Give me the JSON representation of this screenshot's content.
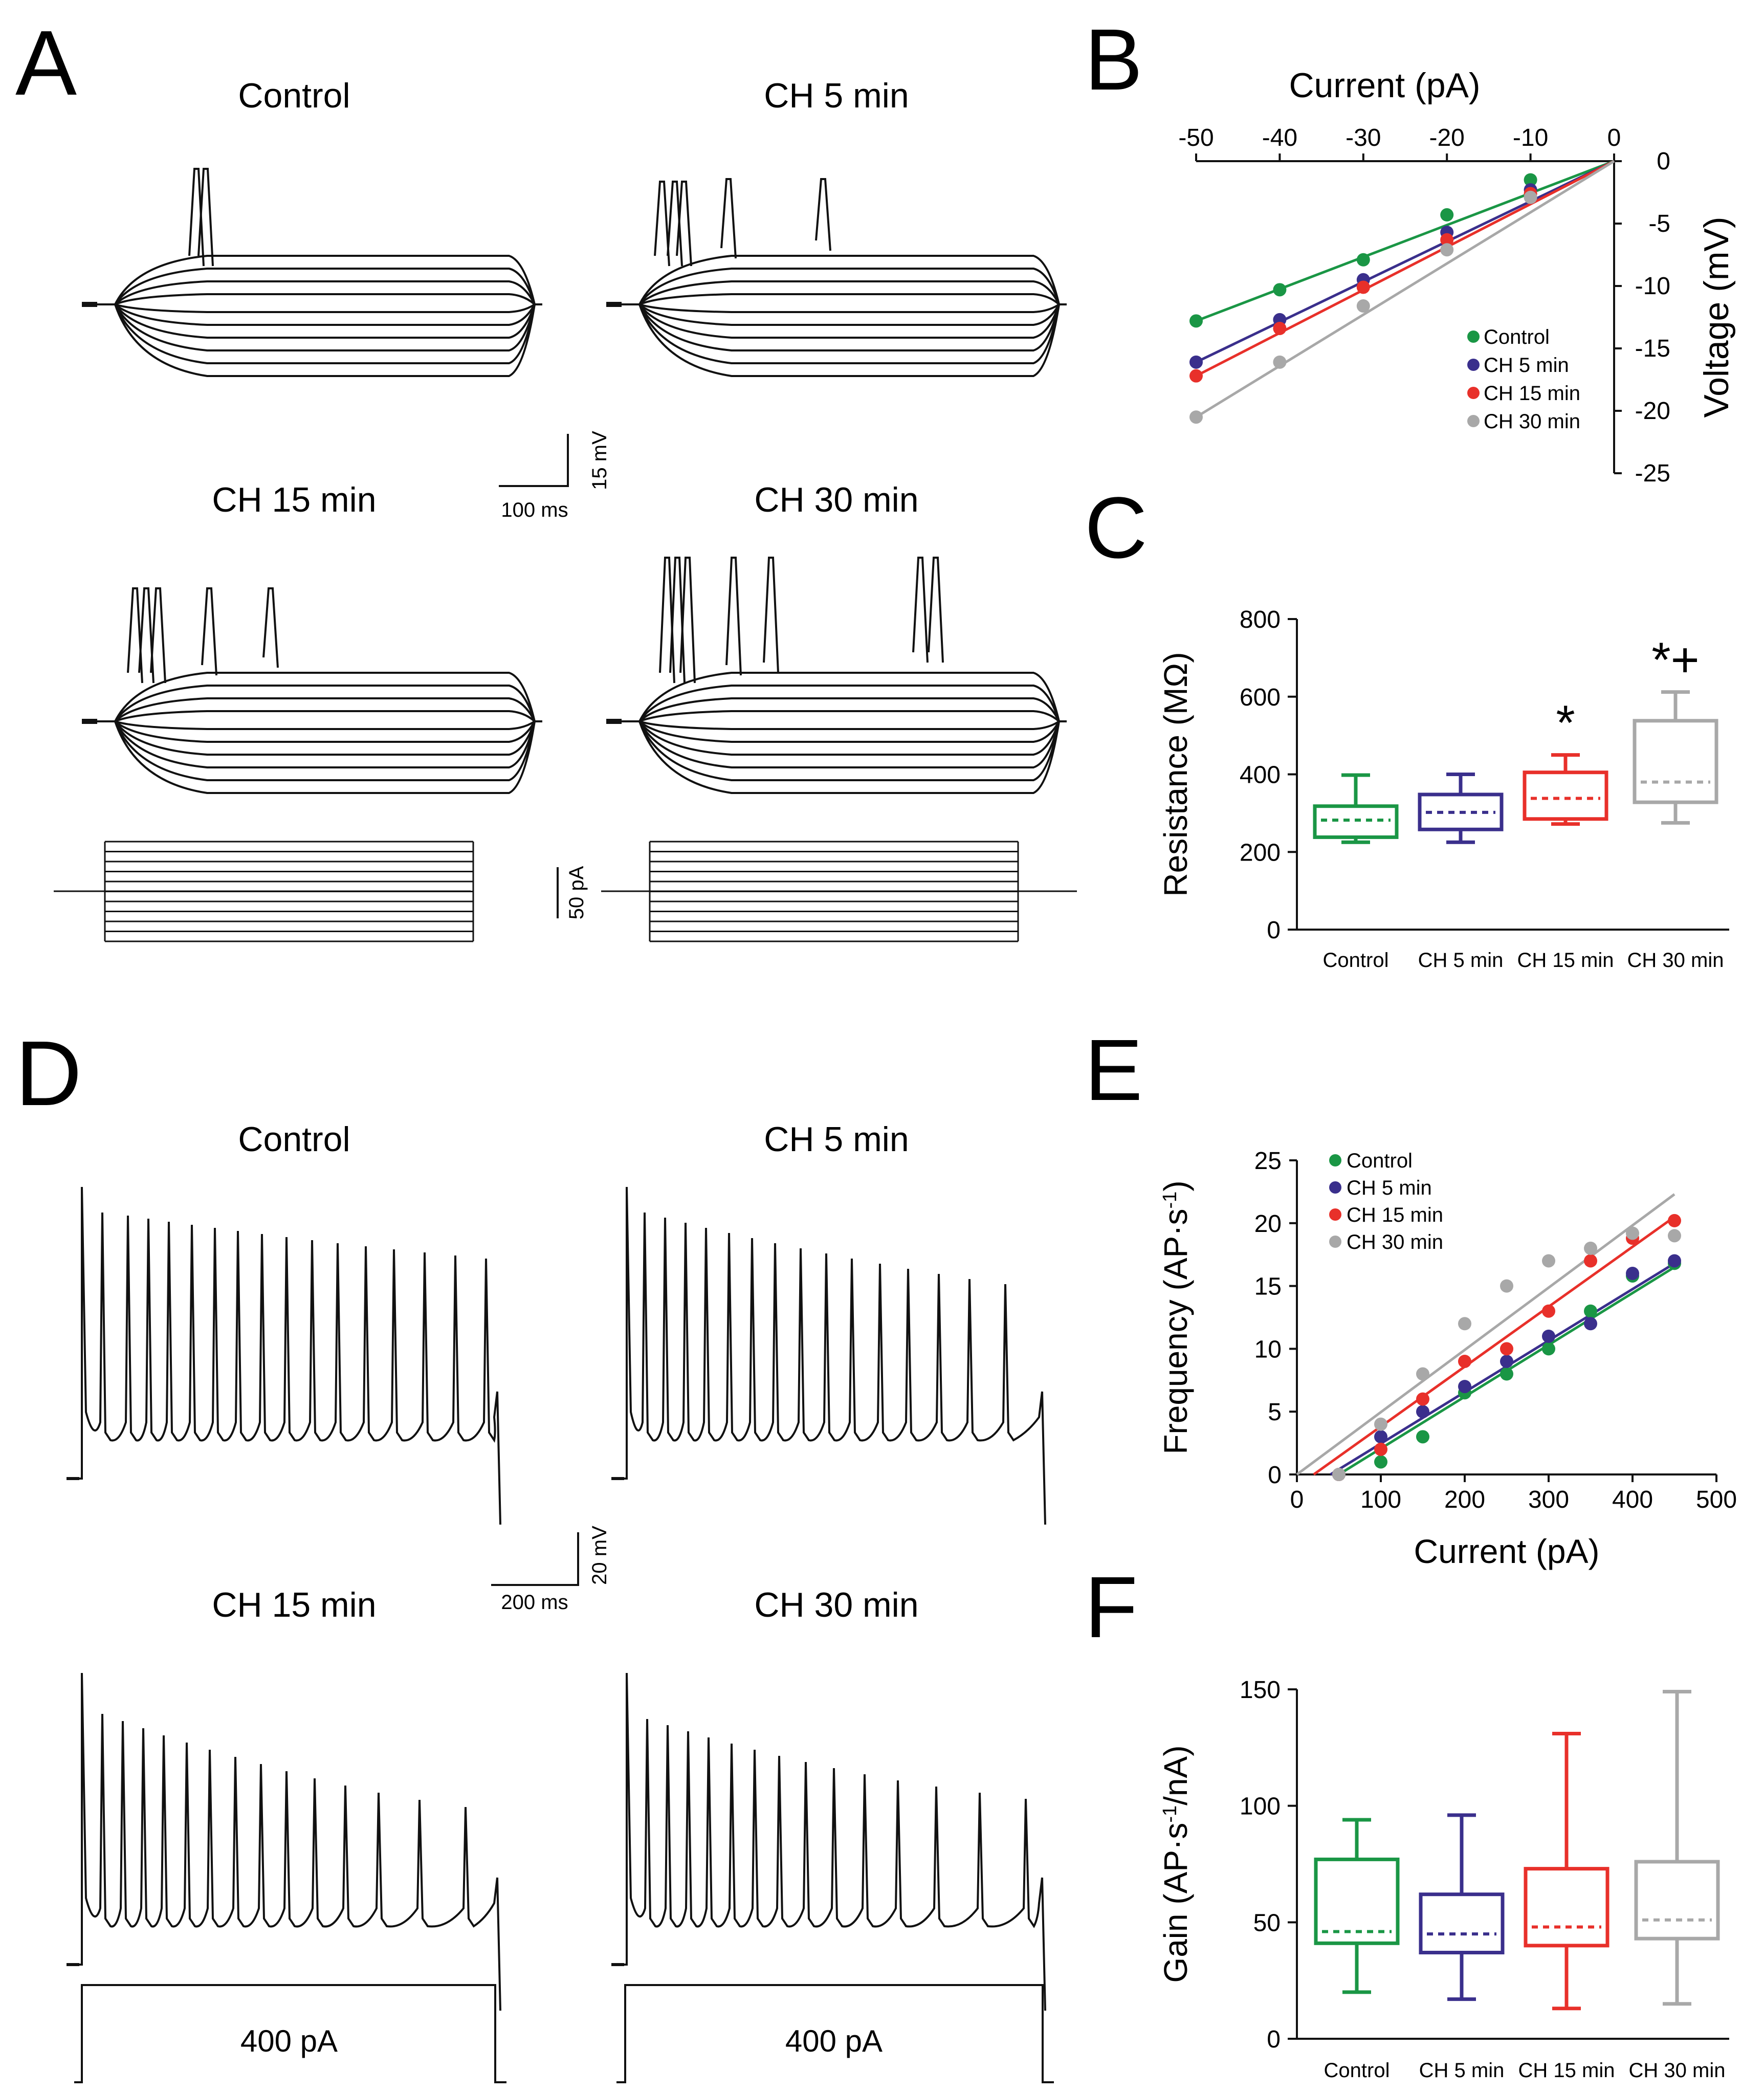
{
  "colors": {
    "control": "#1a9645",
    "ch5": "#3a2f8c",
    "ch15": "#e8302a",
    "ch30": "#a8a8a8",
    "trace": "#111111"
  },
  "panel_letters": [
    "A",
    "B",
    "C",
    "D",
    "E",
    "F"
  ],
  "conditions": [
    "Control",
    "CH 5 min",
    "CH 15 min",
    "CH 30 min"
  ],
  "scalebars": {
    "a_voltage": "15 mV",
    "a_time": "100 ms",
    "a_current": "50 pA",
    "d_voltage": "20 mV",
    "d_time": "200 ms"
  },
  "step_label": "400 pA",
  "chart_data": [
    {
      "panel": "B",
      "type": "scatter",
      "xlabel": "Current (pA)",
      "ylabel": "Voltage (mV)",
      "xlim": [
        -50,
        0
      ],
      "ylim": [
        -25,
        0
      ],
      "xticks": [
        "-50",
        "-40",
        "-30",
        "-20",
        "-10",
        "0"
      ],
      "yticks": [
        "0",
        "-5",
        "-10",
        "-15",
        "-20",
        "-25"
      ],
      "x": [
        -50,
        -40,
        -30,
        -20,
        -10
      ],
      "series": [
        {
          "name": "Control",
          "values": [
            -12.8,
            -10.3,
            -7.9,
            -4.3,
            -1.5
          ]
        },
        {
          "name": "CH 5 min",
          "values": [
            -16.1,
            -12.7,
            -9.5,
            -5.7,
            -2.3
          ]
        },
        {
          "name": "CH 15 min",
          "values": [
            -17.2,
            -13.4,
            -10.1,
            -6.3,
            -2.6
          ]
        },
        {
          "name": "CH 30 min",
          "values": [
            -20.5,
            -16.1,
            -11.6,
            -7.1,
            -2.9
          ]
        }
      ],
      "legend": [
        "Control",
        "CH 5 min",
        "CH 15 min",
        "CH 30 min"
      ]
    },
    {
      "panel": "C",
      "type": "box",
      "ylabel": "Resistance (MΩ)",
      "ylim": [
        0,
        800
      ],
      "yticks": [
        "0",
        "200",
        "400",
        "600",
        "800"
      ],
      "categories": [
        "Control",
        "CH 5 min",
        "CH 15 min",
        "CH 30 min"
      ],
      "boxes": [
        {
          "min": 225,
          "q1": 238,
          "median": 282,
          "q3": 318,
          "max": 398
        },
        {
          "min": 225,
          "q1": 258,
          "median": 302,
          "q3": 348,
          "max": 400
        },
        {
          "min": 272,
          "q1": 285,
          "median": 338,
          "q3": 405,
          "max": 450
        },
        {
          "min": 275,
          "q1": 328,
          "median": 380,
          "q3": 538,
          "max": 612
        }
      ],
      "annotations": [
        "",
        "",
        "*",
        "*+"
      ]
    },
    {
      "panel": "E",
      "type": "scatter",
      "xlabel": "Current (pA)",
      "ylabel": "Frequency (AP·s-1)",
      "xlim": [
        0,
        500
      ],
      "ylim": [
        0,
        25
      ],
      "xticks": [
        "0",
        "100",
        "200",
        "300",
        "400",
        "500"
      ],
      "yticks": [
        "0",
        "5",
        "10",
        "15",
        "20",
        "25"
      ],
      "x": [
        50,
        100,
        150,
        200,
        250,
        300,
        350,
        400,
        450
      ],
      "series": [
        {
          "name": "Control",
          "values": [
            0,
            1,
            3,
            6.5,
            8,
            10,
            13,
            15.8,
            16.8
          ]
        },
        {
          "name": "CH 5 min",
          "values": [
            0,
            3,
            5,
            7,
            9,
            11,
            12,
            16,
            17
          ]
        },
        {
          "name": "CH 15 min",
          "values": [
            0,
            2,
            6,
            9,
            10,
            13,
            17,
            18.8,
            20.2
          ]
        },
        {
          "name": "CH 30 min",
          "values": [
            0,
            4,
            8,
            12,
            15,
            17,
            18,
            19.2,
            19
          ]
        }
      ],
      "fits": [
        {
          "name": "Control",
          "x": [
            50,
            450
          ],
          "y": [
            0,
            16.5
          ]
        },
        {
          "name": "CH 5 min",
          "x": [
            40,
            450
          ],
          "y": [
            0,
            16.8
          ]
        },
        {
          "name": "CH 15 min",
          "x": [
            20,
            450
          ],
          "y": [
            0,
            20.5
          ]
        },
        {
          "name": "CH 30 min",
          "x": [
            0,
            450
          ],
          "y": [
            0,
            22.3
          ]
        }
      ],
      "legend": [
        "Control",
        "CH 5 min",
        "CH 15 min",
        "CH 30 min"
      ]
    },
    {
      "panel": "F",
      "type": "box",
      "ylabel": "Gain (AP·s-1/nA)",
      "ylim": [
        0,
        150
      ],
      "yticks": [
        "0",
        "50",
        "100",
        "150"
      ],
      "categories": [
        "Control",
        "CH 5 min",
        "CH 15 min",
        "CH 30 min"
      ],
      "boxes": [
        {
          "min": 20,
          "q1": 41,
          "median": 46,
          "q3": 77,
          "max": 94
        },
        {
          "min": 17,
          "q1": 37,
          "median": 45,
          "q3": 62,
          "max": 96
        },
        {
          "min": 13,
          "q1": 40,
          "median": 48,
          "q3": 73,
          "max": 131
        },
        {
          "min": 15,
          "q1": 43,
          "median": 51,
          "q3": 76,
          "max": 149
        }
      ]
    }
  ]
}
